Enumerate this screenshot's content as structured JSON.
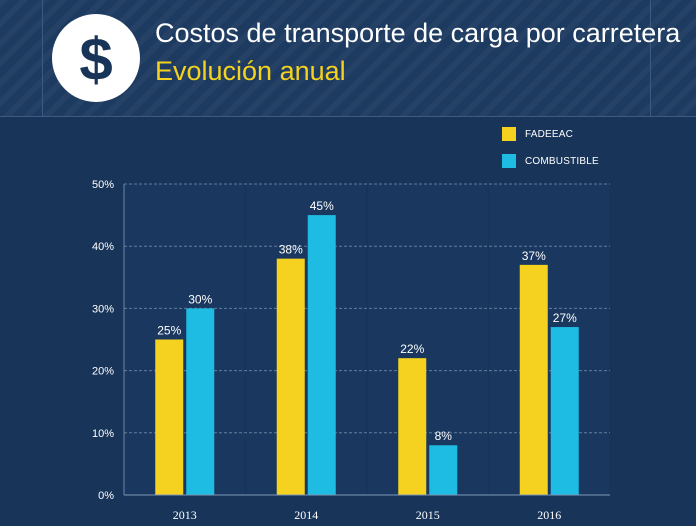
{
  "header": {
    "title": "Costos de transporte de carga por carretera",
    "subtitle": "Evolución anual",
    "logo_icon": "dollar-sign-icon",
    "logo_symbol": "$"
  },
  "colors": {
    "background": "#183459",
    "fadeeac": "#f4d21f",
    "combustible": "#1ebbe3",
    "title": "#ffffff",
    "subtitle": "#f4d21f"
  },
  "chart_data": {
    "type": "bar",
    "categories": [
      "2013",
      "2014",
      "2015",
      "2016"
    ],
    "series": [
      {
        "name": "FADEEAC",
        "color": "#f4d21f",
        "values": [
          25,
          38,
          22,
          37
        ],
        "labels": [
          "25%",
          "38%",
          "22%",
          "37%"
        ]
      },
      {
        "name": "COMBUSTIBLE",
        "color": "#1ebbe3",
        "values": [
          30,
          45,
          8,
          27
        ],
        "labels": [
          "30%",
          "45%",
          "8%",
          "27%"
        ]
      }
    ],
    "ylim": [
      0,
      50
    ],
    "yticks": [
      0,
      10,
      20,
      30,
      40,
      50
    ],
    "ytick_labels": [
      "0%",
      "10%",
      "20%",
      "30%",
      "40%",
      "50%"
    ],
    "grid": true,
    "legend_position": "top-right"
  }
}
